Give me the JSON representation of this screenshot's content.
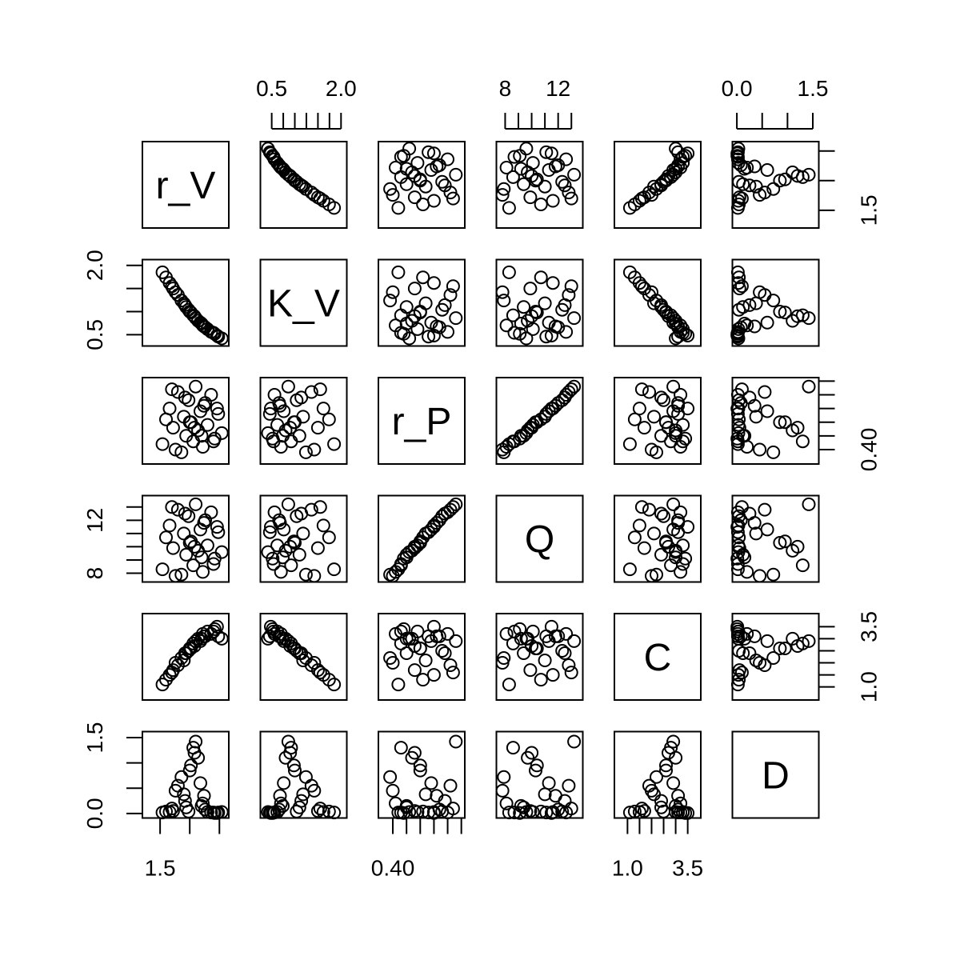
{
  "chart_data": {
    "type": "scatter",
    "title": "",
    "variables": [
      "r_V",
      "K_V",
      "r_P",
      "Q",
      "C",
      "D"
    ],
    "marker": "open-circle",
    "color": "#000000",
    "grid": false,
    "legend": "none",
    "ranges": {
      "r_V": [
        1.38,
        2.05
      ],
      "K_V": [
        0.33,
        2.05
      ],
      "r_P": [
        0.36,
        0.65
      ],
      "Q": [
        7.6,
        13.6
      ],
      "C": [
        0.6,
        3.9
      ],
      "D": [
        -0.02,
        1.55
      ]
    },
    "axes": {
      "top": [
        {
          "var": "K_V",
          "ticks": [
            0.5,
            0.75,
            1.0,
            1.25,
            1.5,
            1.75,
            2.0
          ],
          "labels": [
            "0.5",
            "2.0"
          ],
          "label_at": [
            0.5,
            2.0
          ]
        },
        {
          "var": "Q",
          "ticks": [
            8,
            9,
            10,
            11,
            12,
            13
          ],
          "labels": [
            "8",
            "12"
          ],
          "label_at": [
            8,
            12
          ]
        },
        {
          "var": "D",
          "ticks": [
            0.0,
            0.5,
            1.0,
            1.5
          ],
          "labels": [
            "0.0",
            "1.5"
          ],
          "label_at": [
            0.0,
            1.5
          ]
        }
      ],
      "bottom": [
        {
          "var": "r_V",
          "ticks": [
            1.5,
            1.75,
            2.0
          ],
          "labels": [
            "1.5"
          ],
          "label_at": [
            1.5
          ]
        },
        {
          "var": "r_P",
          "ticks": [
            0.4,
            0.45,
            0.5,
            0.55,
            0.6,
            0.65
          ],
          "labels": [
            "0.40"
          ],
          "label_at": [
            0.4
          ]
        },
        {
          "var": "C",
          "ticks": [
            1.0,
            1.5,
            2.0,
            2.5,
            3.0,
            3.5
          ],
          "labels": [
            "1.0",
            "3.5"
          ],
          "label_at": [
            1.0,
            3.5
          ]
        }
      ],
      "left": [
        {
          "var": "K_V",
          "ticks": [
            0.5,
            1.0,
            1.5,
            2.0
          ],
          "labels": [
            "0.5",
            "2.0"
          ],
          "label_at": [
            0.5,
            2.0
          ]
        },
        {
          "var": "Q",
          "ticks": [
            8,
            9,
            10,
            11,
            12,
            13
          ],
          "labels": [
            "8",
            "12"
          ],
          "label_at": [
            8,
            12
          ]
        },
        {
          "var": "D",
          "ticks": [
            0.0,
            0.5,
            1.0,
            1.5
          ],
          "labels": [
            "0.0",
            "1.5"
          ],
          "label_at": [
            0.0,
            1.5
          ]
        }
      ],
      "right": [
        {
          "var": "r_V",
          "ticks": [
            1.5,
            1.75,
            2.0
          ],
          "labels": [
            "1.5"
          ],
          "label_at": [
            1.5
          ]
        },
        {
          "var": "r_P",
          "ticks": [
            0.4,
            0.45,
            0.5,
            0.55,
            0.6,
            0.65
          ],
          "labels": [
            "0.40"
          ],
          "label_at": [
            0.4
          ]
        },
        {
          "var": "C",
          "ticks": [
            1.0,
            1.5,
            2.0,
            2.5,
            3.0,
            3.5
          ],
          "labels": [
            "1.0",
            "3.5"
          ],
          "label_at": [
            1.0,
            3.5
          ]
        }
      ]
    },
    "sample": {
      "r_V": [
        1.52,
        1.58,
        1.61,
        1.65,
        1.68,
        1.7,
        1.72,
        1.74,
        1.76,
        1.78,
        1.8,
        1.82,
        1.84,
        1.86,
        1.88,
        1.9,
        1.93,
        1.96,
        1.99,
        2.02,
        1.55,
        1.63,
        1.71,
        1.79,
        1.87,
        1.95,
        1.6,
        1.75,
        1.85,
        1.98
      ],
      "K_V": [
        1.85,
        1.62,
        1.5,
        1.36,
        1.24,
        1.18,
        1.1,
        1.04,
        0.98,
        0.92,
        0.86,
        0.8,
        0.76,
        0.7,
        0.66,
        0.62,
        0.56,
        0.52,
        0.46,
        0.42,
        1.74,
        1.42,
        1.14,
        0.9,
        0.68,
        0.54,
        1.55,
        1.0,
        0.74,
        0.48
      ],
      "r_P": [
        0.42,
        0.55,
        0.48,
        0.61,
        0.39,
        0.52,
        0.45,
        0.58,
        0.5,
        0.43,
        0.63,
        0.47,
        0.54,
        0.41,
        0.57,
        0.49,
        0.6,
        0.44,
        0.53,
        0.46,
        0.51,
        0.4,
        0.59,
        0.48,
        0.56,
        0.43,
        0.62,
        0.5,
        0.45,
        0.55
      ],
      "Q": [
        8.3,
        11.6,
        9.9,
        12.8,
        7.9,
        11.0,
        9.4,
        12.3,
        10.4,
        8.6,
        13.2,
        9.7,
        11.3,
        8.1,
        12.0,
        10.1,
        12.6,
        9.1,
        11.1,
        9.6,
        10.7,
        7.8,
        12.5,
        10.0,
        11.8,
        8.7,
        13.0,
        10.3,
        9.2,
        11.5
      ],
      "C": [
        1.1,
        1.5,
        1.7,
        1.9,
        2.2,
        2.1,
        2.4,
        2.5,
        2.6,
        2.8,
        2.9,
        3.0,
        2.9,
        3.2,
        3.1,
        3.3,
        3.2,
        3.4,
        3.1,
        3.0,
        1.3,
        2.0,
        2.4,
        2.7,
        3.1,
        3.3,
        1.6,
        2.6,
        3.0,
        3.5
      ],
      "D": [
        0.02,
        0.03,
        0.05,
        0.55,
        0.72,
        0.38,
        0.12,
        0.04,
        0.95,
        1.3,
        1.42,
        1.1,
        0.6,
        0.2,
        0.08,
        0.03,
        0.02,
        0.01,
        0.02,
        0.03,
        0.04,
        0.45,
        0.25,
        1.2,
        0.35,
        0.02,
        0.1,
        0.85,
        0.15,
        0.01
      ]
    }
  }
}
